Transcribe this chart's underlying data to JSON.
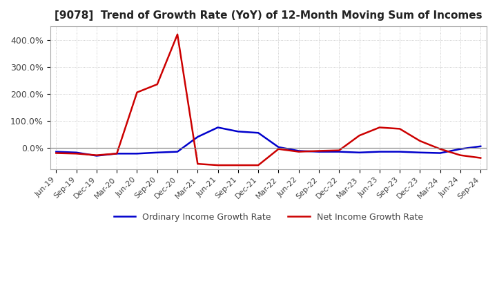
{
  "title": "[9078]  Trend of Growth Rate (YoY) of 12-Month Moving Sum of Incomes",
  "title_fontsize": 11,
  "x_labels": [
    "Jun-19",
    "Sep-19",
    "Dec-19",
    "Mar-20",
    "Jun-20",
    "Sep-20",
    "Dec-20",
    "Mar-21",
    "Jun-21",
    "Sep-21",
    "Dec-21",
    "Mar-22",
    "Jun-22",
    "Sep-22",
    "Dec-22",
    "Mar-23",
    "Jun-23",
    "Sep-23",
    "Dec-23",
    "Mar-24",
    "Jun-24",
    "Sep-24"
  ],
  "ordinary_income": [
    -15,
    -18,
    -30,
    -22,
    -22,
    -18,
    -15,
    40,
    75,
    60,
    55,
    2,
    -12,
    -15,
    -15,
    -18,
    -15,
    -15,
    -18,
    -20,
    -5,
    5
  ],
  "net_income": [
    -20,
    -22,
    -28,
    -22,
    205,
    235,
    420,
    -60,
    -65,
    -65,
    -65,
    -5,
    -15,
    -12,
    -10,
    45,
    75,
    70,
    25,
    -5,
    -28,
    -38
  ],
  "ordinary_color": "#0000cc",
  "net_color": "#cc0000",
  "ylim_min": -80,
  "ylim_max": 450,
  "yticks": [
    0,
    100,
    200,
    300,
    400
  ],
  "ytick_labels": [
    "0.0%",
    "100.0%",
    "200.0%",
    "300.0%",
    "400.0%"
  ],
  "legend_ordinary": "Ordinary Income Growth Rate",
  "legend_net": "Net Income Growth Rate",
  "background_color": "#ffffff",
  "grid_color": "#bbbbbb",
  "line_width": 1.8
}
